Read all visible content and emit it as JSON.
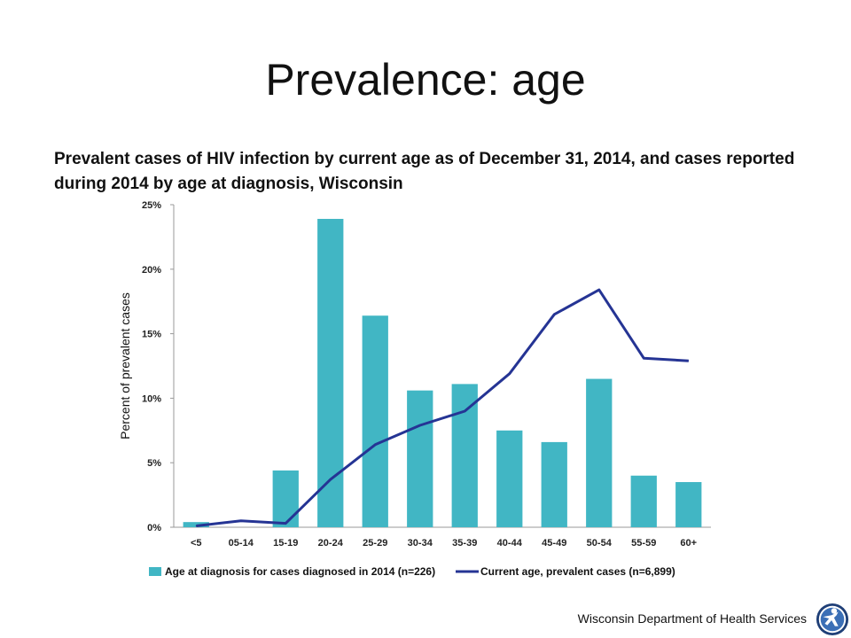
{
  "slide": {
    "title": "Prevalence: age"
  },
  "footer": {
    "organization": "Wisconsin Department of Health Services"
  },
  "chart_data": {
    "type": "bar",
    "title": "Prevalent cases of HIV infection by current age as of December 31, 2014, and cases reported during 2014 by age at diagnosis, Wisconsin",
    "ylabel": "Percent of prevalent cases",
    "xlabel": "",
    "ylim": [
      0,
      25
    ],
    "yticks": [
      0,
      5,
      10,
      15,
      20,
      25
    ],
    "ytick_labels": [
      "0%",
      "5%",
      "10%",
      "15%",
      "20%",
      "25%"
    ],
    "categories": [
      "<5",
      "05-14",
      "15-19",
      "20-24",
      "25-29",
      "30-34",
      "35-39",
      "40-44",
      "45-49",
      "50-54",
      "55-59",
      "60+"
    ],
    "grid": false,
    "legend_position": "bottom",
    "series": [
      {
        "name": "Age at diagnosis for cases diagnosed in 2014 (n=226)",
        "type": "bar",
        "color": "#41B6C4",
        "values": [
          0.4,
          0,
          4.4,
          23.9,
          16.4,
          10.6,
          11.1,
          7.5,
          6.6,
          11.5,
          4.0,
          3.5
        ]
      },
      {
        "name": "Current age, prevalent cases (n=6,899)",
        "type": "line",
        "color": "#253494",
        "values": [
          0.1,
          0.5,
          0.3,
          3.7,
          6.4,
          7.9,
          9.0,
          11.9,
          16.5,
          18.4,
          13.1,
          12.9
        ]
      }
    ]
  }
}
